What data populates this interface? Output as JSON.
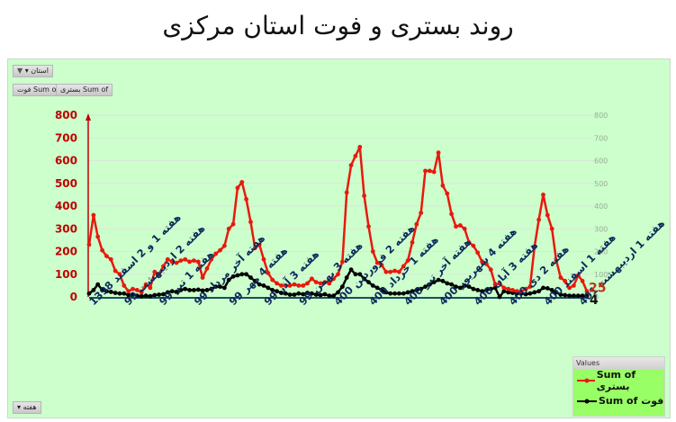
{
  "title": "روند بستری و فوت استان مرکزی",
  "filters": {
    "province_filter_label": "استان",
    "field_buttons": [
      "Sum of فوت",
      "Sum of بستری"
    ],
    "axis_field_label": "هفته"
  },
  "legend": {
    "header": "Values",
    "items": [
      {
        "label": "Sum of بستری",
        "color": "#e8190c"
      },
      {
        "label": "Sum of فوت",
        "color": "#000000"
      }
    ]
  },
  "colors": {
    "panel_bg": "#ccffcc",
    "hospitalized": "#e8190c",
    "deaths": "#000000",
    "axis_left": "#c00000",
    "x_labels": "#0c2a5a",
    "legend_bg": "#99ff66"
  },
  "chart_data": {
    "type": "line",
    "title": "روند بستری و فوت استان مرکزی",
    "xlabel": "هفته",
    "ylabel": "",
    "ylim": [
      0,
      800
    ],
    "yticks": [
      0,
      100,
      200,
      300,
      400,
      500,
      600,
      700,
      800
    ],
    "secondary_yticks": [
      0,
      100,
      200,
      300,
      400,
      500,
      600,
      700,
      800
    ],
    "grid": true,
    "legend_position": "bottom-right",
    "category_labels": [
      "هفته 1 و 2 اسفند 1398",
      "هفته 2 اردیبهشت 99",
      "هفته 1 تیر 99",
      "هفته آخر مرداد 99",
      "هفته 4 مهر 99",
      "هفته 3 آذر 99",
      "هفته 3 بهمن 99",
      "هفته 2 فروردین 400",
      "هفته 1 خرداد 400",
      "هفته آخر تیر 400",
      "هفته 4 شهریور 400",
      "هفته 3 آبان 400",
      "هفته 2 دی 400",
      "هفته 1 اسفند 400",
      "هفته 1 اردیبهشت 401"
    ],
    "annotations": [
      {
        "series": "Sum of بستری",
        "text": "25",
        "at": "last"
      },
      {
        "series": "Sum of فوت",
        "text": "4",
        "at": "last"
      }
    ],
    "series": [
      {
        "name": "Sum of بستری",
        "color": "#e8190c",
        "values": [
          230,
          360,
          265,
          205,
          180,
          165,
          115,
          100,
          50,
          25,
          35,
          30,
          20,
          55,
          40,
          110,
          100,
          135,
          165,
          155,
          150,
          160,
          165,
          155,
          160,
          155,
          85,
          125,
          165,
          190,
          205,
          225,
          300,
          320,
          480,
          505,
          430,
          330,
          215,
          230,
          165,
          105,
          75,
          60,
          50,
          50,
          50,
          55,
          50,
          50,
          60,
          80,
          65,
          60,
          65,
          60,
          80,
          100,
          155,
          460,
          580,
          620,
          660,
          445,
          310,
          200,
          150,
          140,
          110,
          110,
          115,
          110,
          135,
          160,
          240,
          320,
          370,
          555,
          555,
          550,
          635,
          490,
          455,
          365,
          310,
          315,
          300,
          240,
          225,
          195,
          155,
          145,
          120,
          55,
          60,
          40,
          35,
          30,
          25,
          25,
          35,
          45,
          220,
          340,
          450,
          360,
          300,
          160,
          85,
          70,
          40,
          50,
          95,
          70,
          25
        ]
      },
      {
        "name": "Sum of فوت",
        "color": "#000000",
        "values": [
          15,
          30,
          55,
          30,
          25,
          22,
          18,
          15,
          15,
          8,
          10,
          5,
          3,
          5,
          3,
          8,
          10,
          12,
          20,
          25,
          22,
          30,
          35,
          30,
          30,
          32,
          28,
          30,
          35,
          45,
          45,
          40,
          75,
          90,
          95,
          100,
          100,
          85,
          70,
          55,
          50,
          40,
          30,
          25,
          18,
          15,
          10,
          10,
          15,
          12,
          18,
          15,
          10,
          8,
          12,
          5,
          5,
          20,
          45,
          85,
          120,
          100,
          100,
          80,
          65,
          50,
          40,
          30,
          20,
          15,
          15,
          15,
          15,
          20,
          25,
          30,
          35,
          45,
          55,
          65,
          75,
          70,
          60,
          55,
          45,
          40,
          50,
          45,
          35,
          30,
          25,
          30,
          35,
          40,
          0,
          25,
          20,
          18,
          15,
          15,
          12,
          15,
          20,
          25,
          40,
          38,
          30,
          20,
          10,
          8,
          5,
          5,
          5,
          5,
          4
        ]
      }
    ]
  }
}
